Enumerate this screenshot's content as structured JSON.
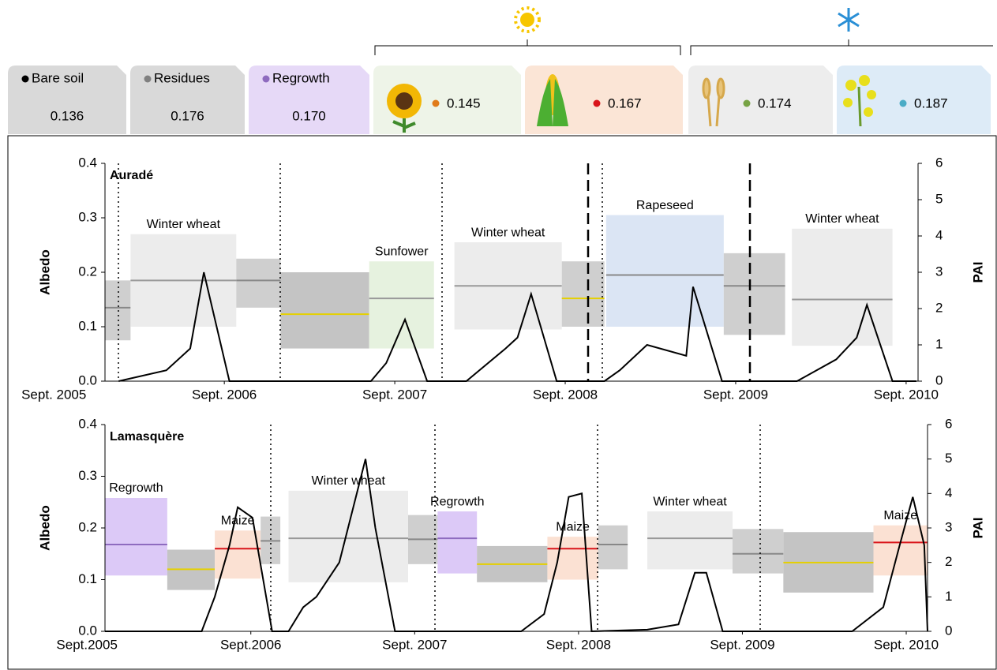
{
  "header": {
    "classes": [
      {
        "name": "Bare soil",
        "albedo": "0.136",
        "color": "#000000",
        "fill": "#d9d9d9"
      },
      {
        "name": "Residues",
        "albedo": "0.176",
        "color": "#808080",
        "fill": "#d9d9d9"
      },
      {
        "name": "Regrowth",
        "albedo": "0.170",
        "color": "#8e6bbf",
        "fill": "#e6d9f7"
      }
    ],
    "crops": [
      {
        "albedo": "0.145",
        "color": "#e07b1a",
        "fill": "#eef4e8"
      },
      {
        "albedo": "0.167",
        "color": "#d9151b",
        "fill": "#fbe5d6"
      },
      {
        "albedo": "0.174",
        "color": "#77a344",
        "fill": "#ededed"
      },
      {
        "albedo": "0.187",
        "color": "#4bacc6",
        "fill": "#ddebf7"
      }
    ]
  },
  "chart_data": [
    {
      "type": "band",
      "site": "Auradé",
      "y_label": "Albedo",
      "y2_label": "PAI",
      "xlim": [
        2005.97,
        2010.74
      ],
      "xticks": [
        {
          "value": 2005.67,
          "label": "Sept. 2005"
        },
        {
          "value": 2006.67,
          "label": "Sept. 2006"
        },
        {
          "value": 2007.67,
          "label": "Sept. 2007"
        },
        {
          "value": 2008.67,
          "label": "Sept. 2008"
        },
        {
          "value": 2009.67,
          "label": "Sept. 2009"
        },
        {
          "value": 2010.67,
          "label": "Sept. 2010"
        }
      ],
      "ylim": [
        0,
        0.4
      ],
      "yticks": [
        {
          "value": 0,
          "label": "0.0"
        },
        0.1,
        0.2,
        0.3,
        0.4
      ],
      "y2lim": [
        0,
        6
      ],
      "y2ticks": [
        0,
        1,
        2,
        3,
        4,
        5,
        6
      ],
      "segments": [
        {
          "x": [
            2005.97,
            2006.12
          ],
          "range": [
            0.075,
            0.185
          ],
          "mean": 0.135,
          "fill": "#cfcfcf",
          "line": "#888888"
        },
        {
          "x": [
            2006.12,
            2006.74
          ],
          "range": [
            0.1,
            0.27
          ],
          "mean": 0.185,
          "fill": "#ececec",
          "line": "#999999",
          "label": "Winter wheat",
          "color": "#77a344"
        },
        {
          "x": [
            2006.74,
            2007.0
          ],
          "range": [
            0.135,
            0.225
          ],
          "mean": 0.185,
          "fill": "#cfcfcf",
          "line": "#888888"
        },
        {
          "x": [
            2007.0,
            2007.52
          ],
          "range": [
            0.06,
            0.2
          ],
          "mean": 0.123,
          "fill": "#c4c4c4",
          "line": "#e5d000"
        },
        {
          "x": [
            2007.52,
            2007.9
          ],
          "range": [
            0.06,
            0.22
          ],
          "mean": 0.152,
          "fill": "#e6f2df",
          "line": "#999999",
          "label": "Sunfower",
          "color": "#e07b1a"
        },
        {
          "x": [
            2008.02,
            2008.65
          ],
          "range": [
            0.095,
            0.255
          ],
          "mean": 0.175,
          "fill": "#ececec",
          "line": "#999999",
          "label": "Winter wheat",
          "color": "#77a344"
        },
        {
          "x": [
            2008.65,
            2008.9
          ],
          "range": [
            0.1,
            0.22
          ],
          "mean": 0.152,
          "fill": "#cfcfcf",
          "line": "#e5d000"
        },
        {
          "x": [
            2008.91,
            2009.6
          ],
          "range": [
            0.1,
            0.305
          ],
          "mean": 0.195,
          "fill": "#dbe5f4",
          "line": "#888888",
          "label": "Rapeseed",
          "color": "#3a9cc0"
        },
        {
          "x": [
            2009.6,
            2009.96
          ],
          "range": [
            0.085,
            0.235
          ],
          "mean": 0.175,
          "fill": "#cfcfcf",
          "line": "#888888"
        },
        {
          "x": [
            2010.0,
            2010.59
          ],
          "range": [
            0.065,
            0.28
          ],
          "mean": 0.15,
          "fill": "#ececec",
          "line": "#999999",
          "label": "Winter wheat",
          "color": "#77a344"
        }
      ],
      "pai": {
        "color": "#000000",
        "x": [
          2006.05,
          2006.33,
          2006.47,
          2006.55,
          2006.7,
          2007.53,
          2007.62,
          2007.73,
          2007.86,
          2008.09,
          2008.32,
          2008.39,
          2008.47,
          2008.62,
          2008.9,
          2008.99,
          2009.15,
          2009.38,
          2009.42,
          2009.59,
          2010.03,
          2010.26,
          2010.38,
          2010.44,
          2010.59,
          2010.73
        ],
        "values": [
          0,
          0.3,
          0.9,
          3.0,
          0,
          0,
          0.5,
          1.7,
          0,
          0,
          0.9,
          1.2,
          2.4,
          0,
          0,
          0.3,
          1.0,
          0.7,
          2.6,
          0,
          0,
          0.6,
          1.2,
          2.1,
          0,
          0
        ]
      }
    },
    {
      "type": "band",
      "site": "Lamasquère",
      "y_label": "Albedo",
      "y2_label": "PAI",
      "xlim": [
        2005.78,
        2010.8
      ],
      "xticks": [
        {
          "value": 2005.67,
          "label": "Sept.2005"
        },
        {
          "value": 2006.67,
          "label": "Sept.2006"
        },
        {
          "value": 2007.67,
          "label": "Sept. 2007"
        },
        {
          "value": 2008.67,
          "label": "Sept. 2008"
        },
        {
          "value": 2009.67,
          "label": "Sept. 2009"
        },
        {
          "value": 2010.67,
          "label": "Sept. 2010"
        }
      ],
      "ylim": [
        0,
        0.4
      ],
      "yticks": [
        {
          "value": 0,
          "label": "0.0"
        },
        0.1,
        0.2,
        0.3,
        0.4
      ],
      "y2lim": [
        0,
        6
      ],
      "y2ticks": [
        0,
        1,
        2,
        3,
        4,
        5,
        6
      ],
      "segments": [
        {
          "x": [
            2005.78,
            2006.16
          ],
          "range": [
            0.108,
            0.258
          ],
          "mean": 0.168,
          "fill": "#dcc9f7",
          "line": "#8e6bbf",
          "label": "Regrowth",
          "color": "#8e6bbf"
        },
        {
          "x": [
            2006.16,
            2006.45
          ],
          "range": [
            0.08,
            0.158
          ],
          "mean": 0.12,
          "fill": "#c4c4c4",
          "line": "#e5d000"
        },
        {
          "x": [
            2006.45,
            2006.73
          ],
          "range": [
            0.102,
            0.195
          ],
          "mean": 0.16,
          "fill": "#fbe1d3",
          "line": "#d9151b",
          "label": "Maize",
          "color": "#d9151b"
        },
        {
          "x": [
            2006.73,
            2006.85
          ],
          "range": [
            0.13,
            0.222
          ],
          "mean": 0.175,
          "fill": "#cfcfcf",
          "line": "#888888"
        },
        {
          "x": [
            2006.9,
            2007.63
          ],
          "range": [
            0.095,
            0.272
          ],
          "mean": 0.18,
          "fill": "#ececec",
          "line": "#999999",
          "label": "Winter wheat",
          "color": "#77a344"
        },
        {
          "x": [
            2007.63,
            2007.81
          ],
          "range": [
            0.13,
            0.225
          ],
          "mean": 0.178,
          "fill": "#cfcfcf",
          "line": "#888888"
        },
        {
          "x": [
            2007.81,
            2008.05
          ],
          "range": [
            0.112,
            0.232
          ],
          "mean": 0.18,
          "fill": "#dcc9f7",
          "line": "#8e6bbf",
          "label": "Regrowth",
          "color": "#8e6bbf"
        },
        {
          "x": [
            2008.05,
            2008.48
          ],
          "range": [
            0.095,
            0.165
          ],
          "mean": 0.13,
          "fill": "#c4c4c4",
          "line": "#e5d000"
        },
        {
          "x": [
            2008.48,
            2008.79
          ],
          "range": [
            0.1,
            0.183
          ],
          "mean": 0.16,
          "fill": "#fbe1d3",
          "line": "#d9151b",
          "label": "Maize",
          "color": "#d9151b"
        },
        {
          "x": [
            2008.79,
            2008.97
          ],
          "range": [
            0.12,
            0.205
          ],
          "mean": 0.168,
          "fill": "#cfcfcf",
          "line": "#888888"
        },
        {
          "x": [
            2009.09,
            2009.61
          ],
          "range": [
            0.12,
            0.232
          ],
          "mean": 0.18,
          "fill": "#ececec",
          "line": "#999999",
          "label": "Winter wheat",
          "color": "#77a344"
        },
        {
          "x": [
            2009.61,
            2009.92
          ],
          "range": [
            0.112,
            0.198
          ],
          "mean": 0.15,
          "fill": "#cfcfcf",
          "line": "#888888"
        },
        {
          "x": [
            2009.92,
            2010.47
          ],
          "range": [
            0.075,
            0.192
          ],
          "mean": 0.133,
          "fill": "#c4c4c4",
          "line": "#e5d000"
        },
        {
          "x": [
            2010.47,
            2010.8
          ],
          "range": [
            0.108,
            0.205
          ],
          "mean": 0.172,
          "fill": "#fbe1d3",
          "line": "#d9151b",
          "label": "Maize",
          "color": "#d9151b"
        }
      ],
      "pai": {
        "color": "#000000",
        "x": [
          2005.78,
          2006.37,
          2006.45,
          2006.54,
          2006.59,
          2006.68,
          2006.8,
          2006.9,
          2006.99,
          2007.07,
          2007.21,
          2007.37,
          2007.43,
          2007.55,
          2008.32,
          2008.46,
          2008.54,
          2008.61,
          2008.69,
          2008.75,
          2009.09,
          2009.28,
          2009.38,
          2009.45,
          2009.55,
          2010.34,
          2010.53,
          2010.63,
          2010.71,
          2010.78,
          2010.8
        ],
        "values": [
          0,
          0,
          1.0,
          2.5,
          3.6,
          3.3,
          0,
          0,
          0.7,
          1.0,
          2.0,
          5.0,
          3.0,
          0,
          0,
          0.5,
          2.0,
          3.9,
          4.0,
          0,
          0.05,
          0.2,
          1.7,
          1.7,
          0,
          0,
          0.7,
          2.5,
          3.9,
          2.5,
          0
        ]
      }
    }
  ]
}
